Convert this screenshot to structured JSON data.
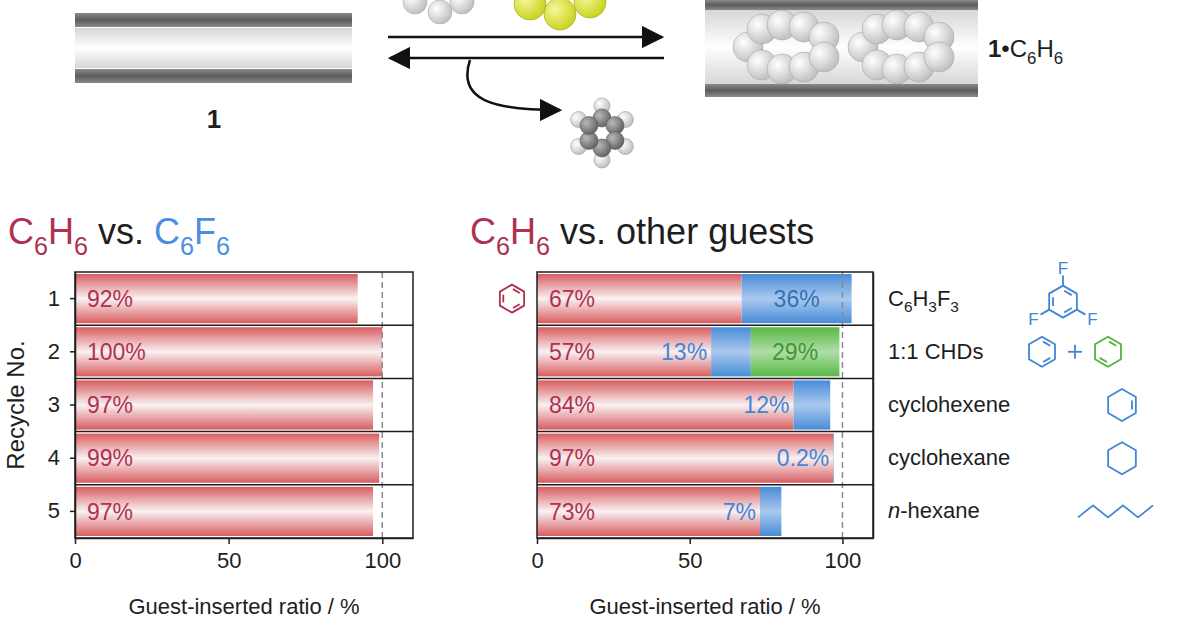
{
  "diagram": {
    "labels": [
      "1",
      "1•C6H6"
    ],
    "atom_labels": [
      "F",
      "F",
      "F"
    ]
  },
  "chart_data": [
    {
      "type": "bar",
      "orientation": "horizontal",
      "title": "C6H6 vs. C6F6",
      "x_label": "Guest-inserted ratio / %",
      "y_label": "Recycle No.",
      "categories": [
        "1",
        "2",
        "3",
        "4",
        "5"
      ],
      "series": [
        {
          "name": "C6H6",
          "color": "#b0314f",
          "values": [
            92,
            100,
            97,
            99,
            97
          ],
          "value_labels": [
            "92%",
            "100%",
            "97%",
            "99%",
            "97%"
          ]
        }
      ],
      "xlim": [
        0,
        110
      ],
      "xticks": [
        0,
        50,
        100
      ],
      "reference_line": 100,
      "data_labels": true
    },
    {
      "type": "bar",
      "orientation": "horizontal",
      "stacked": true,
      "title": "C6H6 vs. other guests",
      "x_label": "Guest-inserted ratio / %",
      "categories": [
        "C6H3F3",
        "1:1 CHDs",
        "cyclohexene",
        "cyclohexane",
        "n-hexane"
      ],
      "series": [
        {
          "name": "C6H6",
          "color": "#b0314f",
          "values": [
            67,
            57,
            84,
            97,
            73
          ],
          "value_labels": [
            "67%",
            "57%",
            "84%",
            "97%",
            "73%"
          ]
        },
        {
          "color": "#3f86d6",
          "values": [
            36,
            13,
            12,
            0.2,
            7
          ],
          "value_labels": [
            "36%",
            "13%",
            "12%",
            "0.2%",
            "7%"
          ]
        },
        {
          "color": "#4fb43c",
          "values": [
            null,
            29,
            null,
            null,
            null
          ],
          "value_labels": [
            null,
            "29%",
            null,
            null,
            null
          ]
        }
      ],
      "xlim": [
        0,
        110
      ],
      "xticks": [
        0,
        50,
        100
      ],
      "reference_line": 100,
      "data_labels": true
    }
  ]
}
